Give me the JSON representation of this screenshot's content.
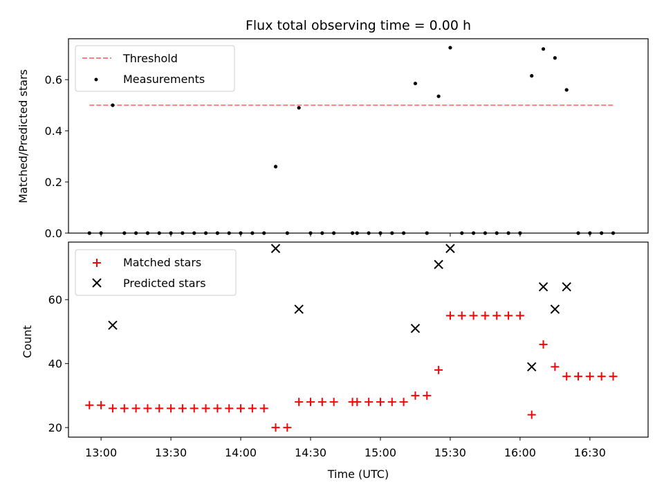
{
  "chart_data": [
    {
      "type": "scatter",
      "panel": "top",
      "title": "Flux total observing time = 0.00 h",
      "xlabel": "",
      "ylabel": "Matched/Predicted stars",
      "ylim": [
        0,
        0.76
      ],
      "yticks": [
        "0.0",
        "0.2",
        "0.4",
        "0.6"
      ],
      "legend": {
        "placement": "upper-left",
        "entries": [
          "Threshold",
          "Measurements"
        ]
      },
      "colors": {
        "threshold": "#ff7f7f",
        "measurements": "#000000"
      },
      "series": [
        {
          "name": "Threshold",
          "kind": "dashed-line",
          "x": [
            "12:55",
            "16:40"
          ],
          "y": [
            0.5,
            0.5
          ]
        },
        {
          "name": "Measurements",
          "kind": "points",
          "x": [
            "12:55",
            "13:00",
            "13:05",
            "13:10",
            "13:15",
            "13:20",
            "13:25",
            "13:30",
            "13:35",
            "13:40",
            "13:45",
            "13:50",
            "13:55",
            "14:00",
            "14:05",
            "14:10",
            "14:15",
            "14:20",
            "14:25",
            "14:30",
            "14:35",
            "14:40",
            "14:48",
            "14:50",
            "14:55",
            "15:00",
            "15:05",
            "15:10",
            "15:15",
            "15:20",
            "15:25",
            "15:30",
            "15:35",
            "15:40",
            "15:45",
            "15:50",
            "15:55",
            "16:00",
            "16:05",
            "16:10",
            "16:15",
            "16:20",
            "16:25",
            "16:30",
            "16:35",
            "16:40"
          ],
          "y": [
            0,
            0,
            0.5,
            0,
            0,
            0,
            0,
            0,
            0,
            0,
            0,
            0,
            0,
            0,
            0,
            0,
            0.26,
            0,
            0.49,
            0,
            0,
            0,
            0,
            0,
            0,
            0,
            0,
            0,
            0.585,
            0,
            0.535,
            0.725,
            0,
            0,
            0,
            0,
            0,
            0,
            0.615,
            0.72,
            0.685,
            0.56,
            0,
            0,
            0,
            0
          ]
        }
      ]
    },
    {
      "type": "scatter",
      "panel": "bottom",
      "title": "",
      "xlabel": "Time (UTC)",
      "ylabel": "Count",
      "ylim": [
        17,
        78
      ],
      "yticks": [
        "20",
        "40",
        "60"
      ],
      "xlim": [
        "12:46",
        "16:55"
      ],
      "xticks": [
        "13:00",
        "13:30",
        "14:00",
        "14:30",
        "15:00",
        "15:30",
        "16:00",
        "16:30"
      ],
      "legend": {
        "placement": "upper-left",
        "entries": [
          "Matched stars",
          "Predicted stars"
        ]
      },
      "colors": {
        "matched": "#ff0000",
        "predicted": "#000000"
      },
      "series": [
        {
          "name": "Matched stars",
          "marker": "plus",
          "x": [
            "12:55",
            "13:00",
            "13:05",
            "13:10",
            "13:15",
            "13:20",
            "13:25",
            "13:30",
            "13:35",
            "13:40",
            "13:45",
            "13:50",
            "13:55",
            "14:00",
            "14:05",
            "14:10",
            "14:15",
            "14:20",
            "14:25",
            "14:30",
            "14:35",
            "14:40",
            "14:48",
            "14:50",
            "14:55",
            "15:00",
            "15:05",
            "15:10",
            "15:15",
            "15:20",
            "15:25",
            "15:30",
            "15:35",
            "15:40",
            "15:45",
            "15:50",
            "15:55",
            "16:00",
            "16:05",
            "16:10",
            "16:15",
            "16:20",
            "16:25",
            "16:30",
            "16:35",
            "16:40"
          ],
          "y": [
            27,
            27,
            26,
            26,
            26,
            26,
            26,
            26,
            26,
            26,
            26,
            26,
            26,
            26,
            26,
            26,
            20,
            20,
            28,
            28,
            28,
            28,
            28,
            28,
            28,
            28,
            28,
            28,
            30,
            30,
            38,
            55,
            55,
            55,
            55,
            55,
            55,
            55,
            24,
            46,
            39,
            36,
            36,
            36,
            36,
            36
          ]
        },
        {
          "name": "Predicted stars",
          "marker": "x",
          "x": [
            "13:05",
            "14:15",
            "14:25",
            "15:15",
            "15:25",
            "15:30",
            "16:05",
            "16:10",
            "16:15",
            "16:20"
          ],
          "y": [
            52,
            76,
            57,
            51,
            71,
            76,
            39,
            64,
            57,
            64
          ]
        }
      ]
    }
  ]
}
